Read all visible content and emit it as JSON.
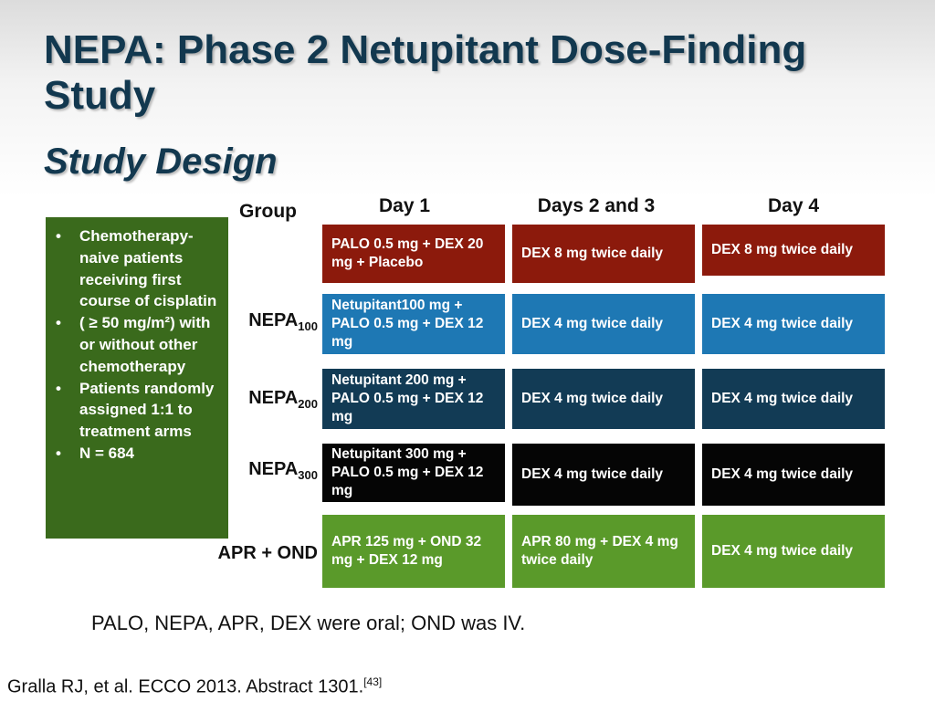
{
  "slide": {
    "title": "NEPA: Phase 2 Netupitant Dose-Finding Study",
    "subtitle": "Study Design"
  },
  "headers": {
    "group": "Group",
    "day1": "Day 1",
    "days23": "Days 2 and 3",
    "day4": "Day 4"
  },
  "eligibility": [
    "Chemotherapy-naive patients receiving first course of cisplatin",
    "( ≥ 50 mg/m²) with or without other chemotherapy",
    "Patients randomly assigned 1:1 to treatment arms",
    "N = 684"
  ],
  "groups": [
    {
      "label": "",
      "sub": "",
      "day1": "PALO 0.5 mg + DEX 20 mg + Placebo",
      "days23": "DEX 8 mg twice daily",
      "day4": "DEX 8 mg twice daily",
      "color": "#8c1a0c"
    },
    {
      "label": "NEPA",
      "sub": "100",
      "day1": "Netupitant100 mg + PALO 0.5 mg + DEX 12 mg",
      "days23": "DEX 4 mg twice daily",
      "day4": "DEX 4 mg twice daily",
      "color": "#1e78b4"
    },
    {
      "label": "NEPA",
      "sub": "200",
      "day1": "Netupitant 200 mg + PALO 0.5 mg + DEX 12 mg",
      "days23": "DEX 4 mg twice daily",
      "day4": "DEX 4 mg twice daily",
      "color": "#123b55"
    },
    {
      "label": "NEPA",
      "sub": "300",
      "day1": "Netupitant 300 mg + PALO 0.5 mg + DEX 12 mg",
      "days23": "DEX 4 mg twice daily",
      "day4": "DEX 4 mg twice daily",
      "color": "#050505"
    },
    {
      "label": "APR + OND",
      "sub": "",
      "day1": "APR 125 mg + OND 32 mg + DEX 12 mg",
      "days23": "APR 80 mg + DEX 4 mg twice daily",
      "day4": "DEX 4 mg twice daily",
      "color": "#5a9a2a"
    }
  ],
  "footnote": "PALO, NEPA, APR, DEX were oral; OND was IV.",
  "citation": {
    "text": "Gralla RJ, et al. ECCO 2013. Abstract 1301.",
    "ref": "[43]"
  }
}
